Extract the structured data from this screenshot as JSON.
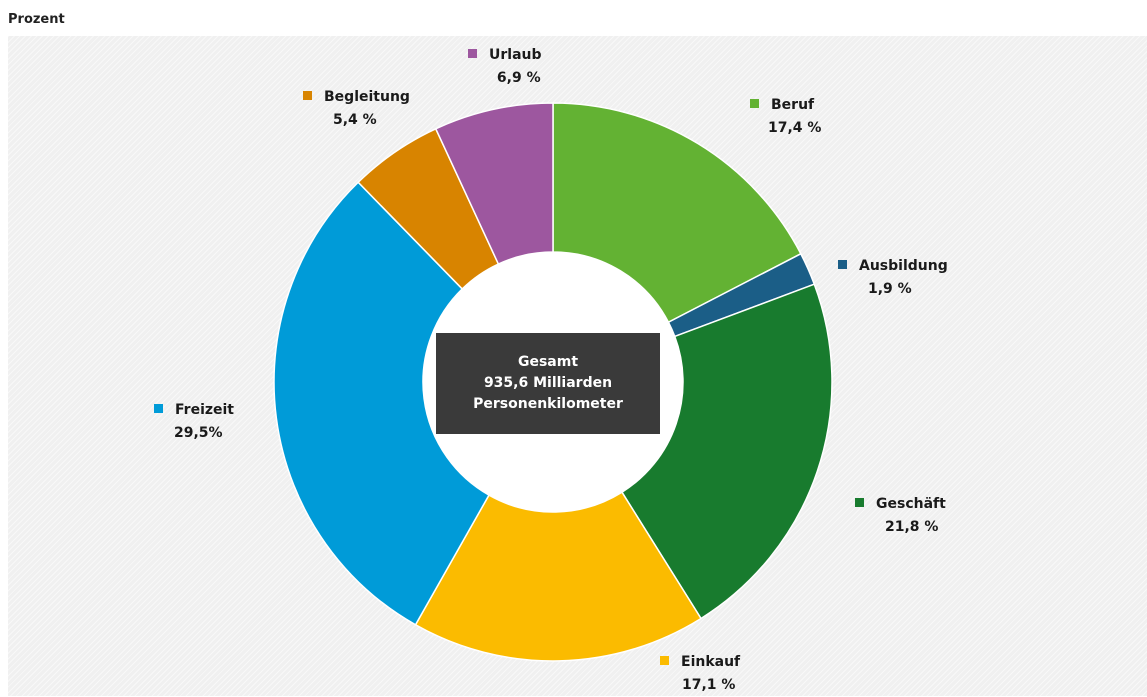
{
  "unit_label": "Prozent",
  "center": {
    "line1": "Gesamt",
    "line2": "935,6 Milliarden",
    "line3": "Personenkilometer"
  },
  "chart_data": {
    "type": "pie",
    "variant": "donut",
    "unit": "Prozent",
    "slices": [
      {
        "name": "Beruf",
        "value": 17.4,
        "label": "17,4 %",
        "color": "#63b233"
      },
      {
        "name": "Ausbildung",
        "value": 1.9,
        "label": "1,9 %",
        "color": "#1b5e87"
      },
      {
        "name": "Geschäft",
        "value": 21.8,
        "label": "21,8 %",
        "color": "#187b2e"
      },
      {
        "name": "Einkauf",
        "value": 17.1,
        "label": "17,1 %",
        "color": "#fbbb00"
      },
      {
        "name": "Freizeit",
        "value": 29.5,
        "label": "29,5%",
        "color": "#009bd8"
      },
      {
        "name": "Begleitung",
        "value": 5.4,
        "label": "5,4 %",
        "color": "#d88400"
      },
      {
        "name": "Urlaub",
        "value": 6.9,
        "label": "6,9 %",
        "color": "#9d579f"
      }
    ],
    "start_angle_deg": 0,
    "direction": "clockwise",
    "legend": "labels-around-chart"
  }
}
